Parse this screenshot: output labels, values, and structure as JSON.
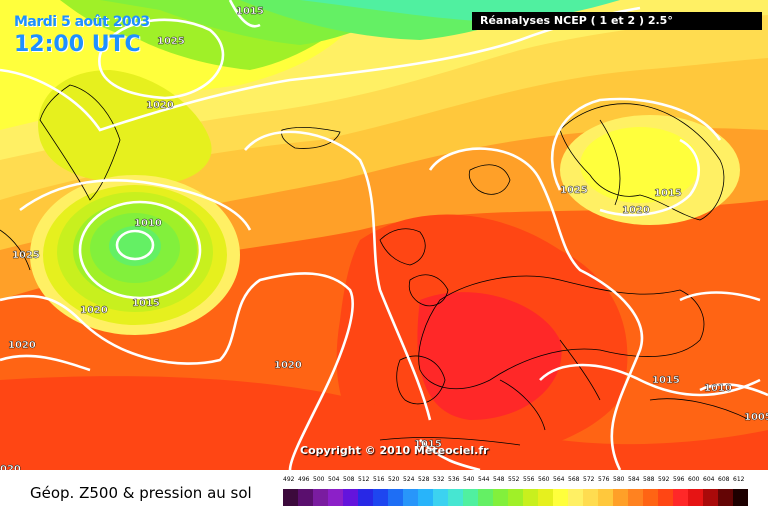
{
  "header": {
    "date": "Mardi 5 août 2003",
    "time": "12:00 UTC",
    "source": "Réanalyses NCEP ( 1 et 2 ) 2.5°"
  },
  "copyright": "Copyright © 2010 Meteociel.fr",
  "footer": {
    "title": "Géop. Z500 & pression au sol",
    "scale_values": [
      "492",
      "496",
      "500",
      "504",
      "508",
      "512",
      "516",
      "520",
      "524",
      "528",
      "532",
      "536",
      "540",
      "544",
      "548",
      "552",
      "556",
      "560",
      "564",
      "568",
      "572",
      "576",
      "580",
      "584",
      "588",
      "592",
      "596",
      "600",
      "604",
      "608",
      "612"
    ],
    "scale_colors": [
      "#3c0a3c",
      "#5a0f6e",
      "#7a1ca0",
      "#8c20c8",
      "#6414dc",
      "#2828e6",
      "#1e46f0",
      "#1e6ef5",
      "#2896fa",
      "#28b4fa",
      "#3cd2f0",
      "#46e6d2",
      "#50f0a0",
      "#64f064",
      "#82f03c",
      "#a0f028",
      "#c8f01e",
      "#e6f01e",
      "#ffff3c",
      "#fff064",
      "#ffdc50",
      "#ffc83c",
      "#ffa028",
      "#ff8220",
      "#ff6414",
      "#ff4614",
      "#ff2828",
      "#e61414",
      "#aa0a0a",
      "#640505",
      "#1e0000"
    ]
  },
  "isobars": [
    {
      "label": "1015",
      "pos": "north-greenland"
    },
    {
      "label": "1025",
      "pos": "greenland-high"
    },
    {
      "label": "1020",
      "pos": "greenland-south"
    },
    {
      "label": "1010",
      "pos": "atlantic-low"
    },
    {
      "label": "1015",
      "pos": "atlantic-low-south"
    },
    {
      "label": "1020",
      "pos": "atlantic-west"
    },
    {
      "label": "1025",
      "pos": "canada"
    },
    {
      "label": "1020",
      "pos": "newfoundland"
    },
    {
      "label": "1020",
      "pos": "mid-atlantic"
    },
    {
      "label": "1025",
      "pos": "north-sea"
    },
    {
      "label": "1020",
      "pos": "scandinavia-west"
    },
    {
      "label": "1015",
      "pos": "scandinavia-east"
    },
    {
      "label": "1015",
      "pos": "balkans"
    },
    {
      "label": "1010",
      "pos": "black-sea"
    },
    {
      "label": "1015",
      "pos": "north-africa"
    },
    {
      "label": "1005",
      "pos": "turkey"
    },
    {
      "label": "020",
      "pos": "south-west-edge"
    }
  ],
  "map_colors": {
    "green": "#64f064",
    "light_green": "#a0f028",
    "lime": "#c8f01e",
    "yellow": "#ffff3c",
    "pale_yellow": "#fff064",
    "orange": "#ffc83c",
    "dark_orange": "#ffa028",
    "red_orange": "#ff6414",
    "red": "#ff4614",
    "deep_red": "#ff2828",
    "teal": "#50f0a0"
  }
}
